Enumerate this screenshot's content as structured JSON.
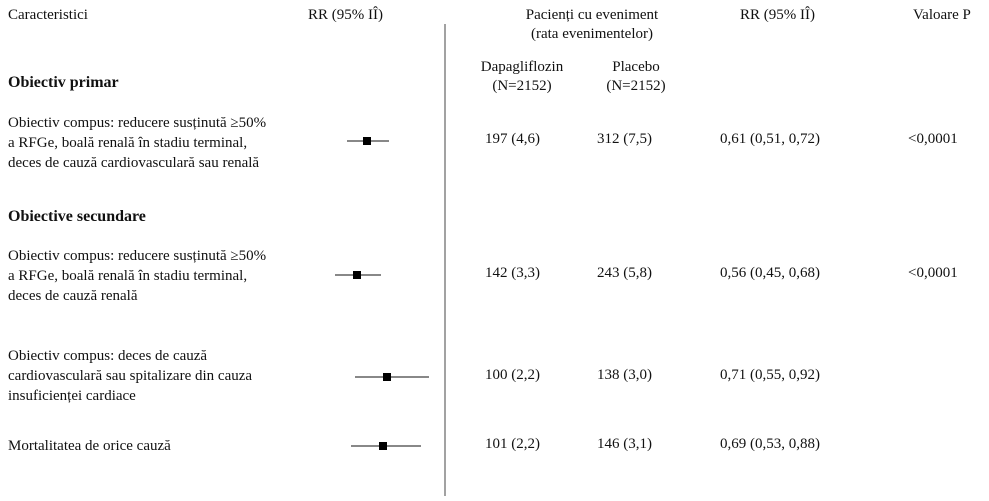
{
  "header": {
    "characteristics": "Caracteristici",
    "rr_ci_plot": "RR (95% IÎ)",
    "patients_event_line1": "Pacienți cu eveniment",
    "patients_event_line2": "(rata evenimentelor)",
    "rr_ci_col": "RR (95% IÎ)",
    "p_value": "Valoare P",
    "dapa_name": "Dapagliflozin",
    "dapa_n": "(N=2152)",
    "placebo_name": "Placebo",
    "placebo_n": "(N=2152)"
  },
  "sections": {
    "primary": "Obiectiv primar",
    "secondary": "Obiective secundare"
  },
  "rows": [
    {
      "label_lines": [
        "Obiectiv compus: reducere susținută ≥50%",
        "a RFGe, boală renală în stadiu terminal,",
        "deces de cauză cardiovasculară sau renală"
      ],
      "dapa": "197 (4,6)",
      "placebo": "312 (7,5)",
      "rr_text": "0,61 (0,51, 0,72)",
      "p": "<0,0001"
    },
    {
      "label_lines": [
        "Obiectiv compus: reducere susținută ≥50%",
        "a RFGe, boală renală în stadiu terminal,",
        "deces de cauză renală"
      ],
      "dapa": "142 (3,3)",
      "placebo": "243 (5,8)",
      "rr_text": "0,56 (0,45, 0,68)",
      "p": "<0,0001"
    },
    {
      "label_lines": [
        "Obiectiv compus: deces de cauză",
        "cardiovasculară sau spitalizare din cauza",
        "insuficienței cardiace"
      ],
      "dapa": "100 (2,2)",
      "placebo": "138 (3,0)",
      "rr_text": "0,71 (0,55, 0,92)",
      "p": ""
    },
    {
      "label_lines": [
        "Mortalitatea de orice cauză"
      ],
      "dapa": "101 (2,2)",
      "placebo": "146 (3,1)",
      "rr_text": "0,69 (0,53, 0,88)",
      "p": ""
    }
  ],
  "chart_data": {
    "type": "scatter",
    "subtype": "forest-plot",
    "title": "",
    "xlabel": "RR (95% IÎ)",
    "ylabel": "",
    "reference_line": 1.0,
    "xlim": [
      0.3,
      1.3
    ],
    "grid": false,
    "series": [
      {
        "estimates": [
          {
            "rr": 0.61,
            "lower": 0.51,
            "upper": 0.72
          },
          {
            "rr": 0.56,
            "lower": 0.45,
            "upper": 0.68
          },
          {
            "rr": 0.71,
            "lower": 0.55,
            "upper": 0.92
          },
          {
            "rr": 0.69,
            "lower": 0.53,
            "upper": 0.88
          }
        ]
      }
    ]
  }
}
